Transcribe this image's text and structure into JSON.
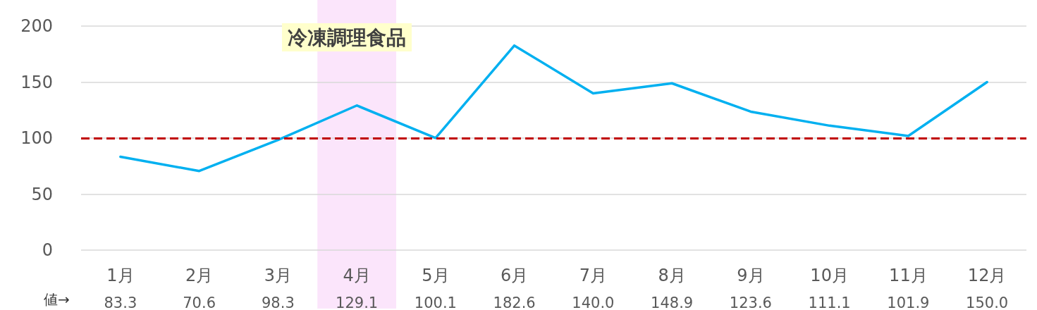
{
  "chart_data": {
    "type": "line",
    "title": "冷凍調理食品",
    "categories": [
      "1月",
      "2月",
      "3月",
      "4月",
      "5月",
      "6月",
      "7月",
      "8月",
      "9月",
      "10月",
      "11月",
      "12月"
    ],
    "series": [
      {
        "color": "#00b0f0",
        "values": [
          83.3,
          70.6,
          98.3,
          129.1,
          100.1,
          182.6,
          140.0,
          148.9,
          123.6,
          111.1,
          101.9,
          150.0
        ],
        "value_labels": [
          "83.3",
          "70.6",
          "98.3",
          "129.1",
          "100.1",
          "182.6",
          "140.0",
          "148.9",
          "123.6",
          "111.1",
          "101.9",
          "150.0"
        ]
      }
    ],
    "ylim": [
      0,
      200
    ],
    "yticks": [
      0,
      50,
      100,
      150,
      200
    ],
    "grid": "y",
    "marker": "none",
    "line_style": "solid",
    "ref_lines": [
      {
        "axis": "y",
        "value": 100,
        "color": "#c00000",
        "line_style": "dashed"
      }
    ],
    "bands": [
      {
        "axis": "x",
        "from": "4月",
        "to": "4月",
        "color": "#fbe5fb"
      }
    ],
    "annotations": [
      "値→"
    ]
  }
}
